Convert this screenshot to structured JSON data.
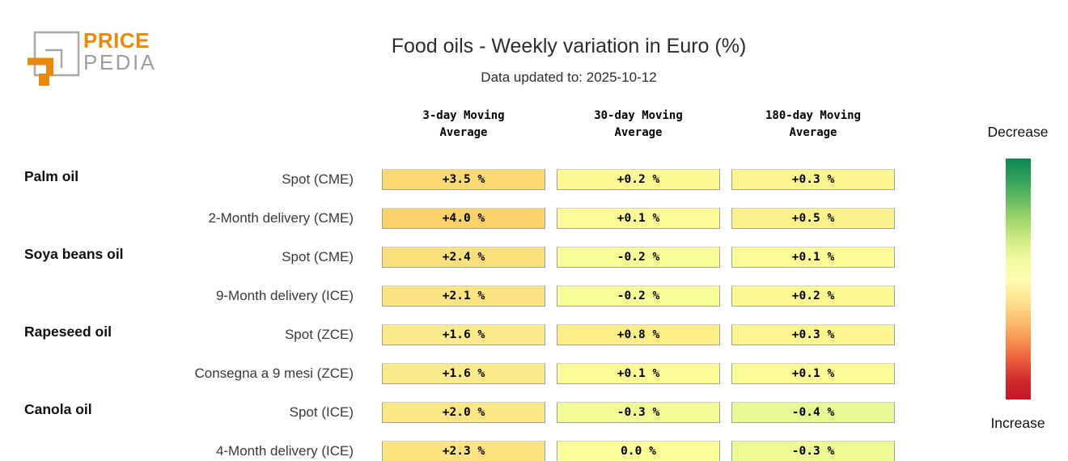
{
  "logo": {
    "line1": "PRICE",
    "line2": "PEDIA",
    "orange": "#E8890C",
    "gray": "#9E9E9E"
  },
  "chart_data": {
    "type": "heatmap",
    "title": "Food oils - Weekly variation in Euro (%)",
    "subtitle": "Data updated to: 2025-10-12",
    "unit": "%",
    "columns": [
      "3-day Moving Average",
      "30-day Moving Average",
      "180-day Moving Average"
    ],
    "rows": [
      {
        "group": "Palm oil",
        "label": "Spot (CME)",
        "values": [
          3.5,
          0.2,
          0.3
        ],
        "display": [
          "+3.5 %",
          "+0.2 %",
          "+0.3 %"
        ],
        "colors": [
          "#fcd973",
          "#fdf993",
          "#fdf590"
        ]
      },
      {
        "group": "",
        "label": "2-Month delivery (CME)",
        "values": [
          4.0,
          0.1,
          0.5
        ],
        "display": [
          "+4.0 %",
          "+0.1 %",
          "+0.5 %"
        ],
        "colors": [
          "#fbd169",
          "#fdfc96",
          "#fdf18c"
        ]
      },
      {
        "group": "Soya beans oil",
        "label": "Spot (CME)",
        "values": [
          2.4,
          -0.2,
          0.1
        ],
        "display": [
          "+2.4 %",
          "-0.2 %",
          "+0.1 %"
        ],
        "colors": [
          "#fde07e",
          "#f8fd97",
          "#fdfc96"
        ]
      },
      {
        "group": "",
        "label": "9-Month delivery (ICE)",
        "values": [
          2.1,
          -0.2,
          0.2
        ],
        "display": [
          "+2.1 %",
          "-0.2 %",
          "+0.2 %"
        ],
        "colors": [
          "#fde483",
          "#f8fd97",
          "#fdf993"
        ]
      },
      {
        "group": "Rapeseed oil",
        "label": "Spot (ZCE)",
        "values": [
          1.6,
          0.8,
          0.3
        ],
        "display": [
          "+1.6 %",
          "+0.8 %",
          "+0.3 %"
        ],
        "colors": [
          "#fdea8b",
          "#feee87",
          "#fdf590"
        ]
      },
      {
        "group": "",
        "label": "Consegna a 9 mesi (ZCE)",
        "values": [
          1.6,
          0.1,
          0.1
        ],
        "display": [
          "+1.6 %",
          "+0.1 %",
          "+0.1 %"
        ],
        "colors": [
          "#fdea8b",
          "#fdfc96",
          "#fdfc96"
        ]
      },
      {
        "group": "Canola oil",
        "label": "Spot (ICE)",
        "values": [
          2.0,
          -0.3,
          -0.4
        ],
        "display": [
          "+2.0 %",
          "-0.3 %",
          "-0.4 %"
        ],
        "colors": [
          "#fde685",
          "#f2fb96",
          "#eaf893"
        ]
      },
      {
        "group": "",
        "label": "4-Month delivery (ICE)",
        "values": [
          2.3,
          0.0,
          -0.3
        ],
        "display": [
          "+2.3 %",
          "0.0 %",
          "-0.3 %"
        ],
        "colors": [
          "#fde481",
          "#fcfe98",
          "#f0fa95"
        ]
      }
    ],
    "legend": {
      "top_label": "Decrease",
      "bottom_label": "Increase",
      "gradient": [
        "#0c8750",
        "#2fa05a",
        "#64bb62",
        "#9dd569",
        "#cdea84",
        "#f2faa0",
        "#fdfdb0",
        "#fee593",
        "#fdc172",
        "#f79552",
        "#ea5e3c",
        "#d22c2c",
        "#c5162a"
      ]
    },
    "layout": {
      "grid": false,
      "legend_position": "right",
      "value_range_note": "green=decrease, red=increase"
    }
  }
}
